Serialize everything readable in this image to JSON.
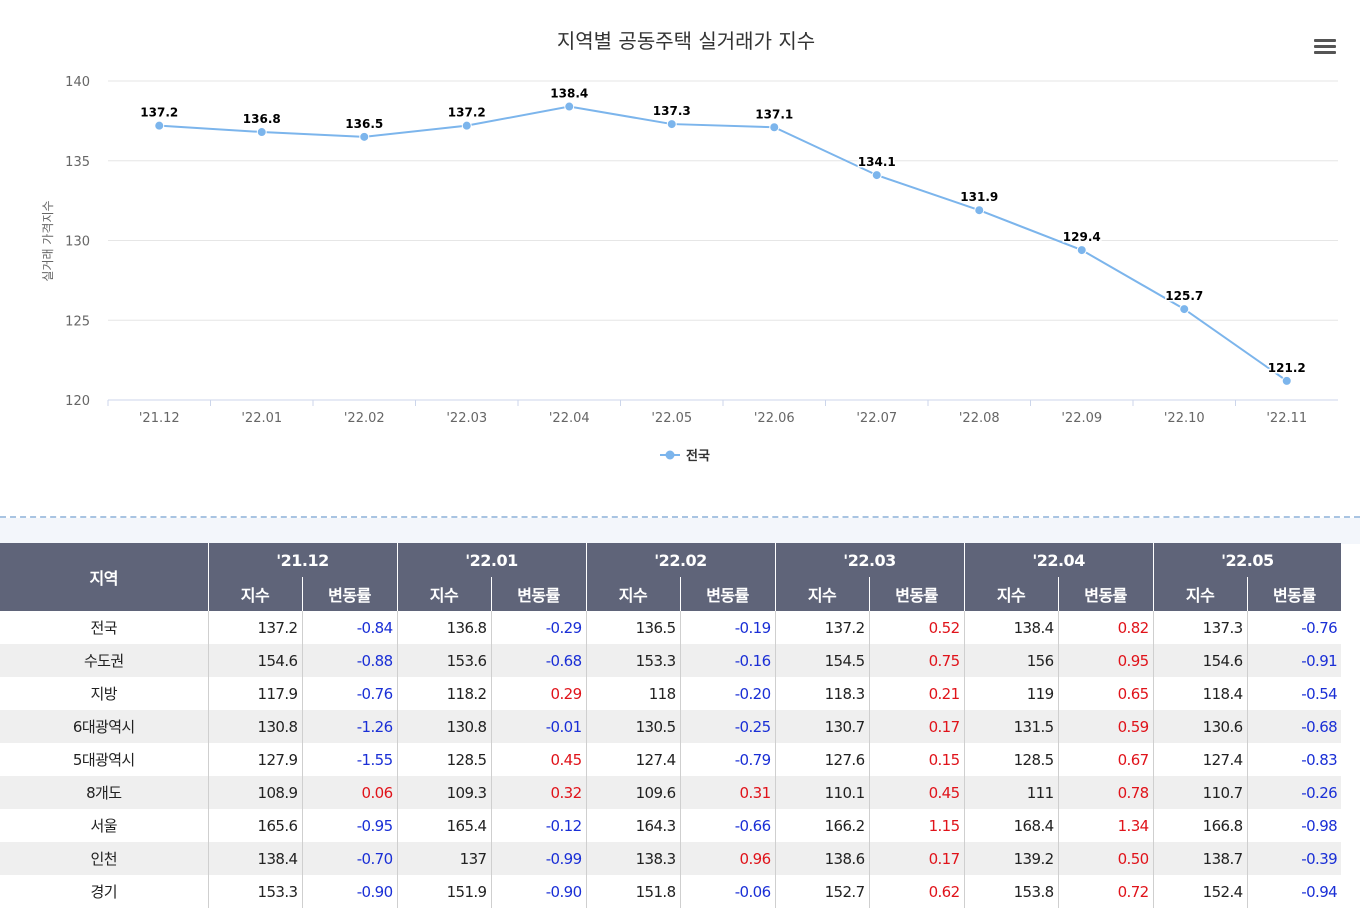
{
  "title": "지역별 공동주택 실거래가 지수",
  "menu_icon": "hamburger-menu-icon",
  "chart_data": {
    "type": "line",
    "title": "지역별 공동주택 실거래가 지수",
    "ylabel": "실거래 가격지수",
    "xlabel": "",
    "ylim": [
      120,
      140
    ],
    "yticks": [
      "140",
      "135",
      "130",
      "125",
      "120"
    ],
    "categories": [
      "'21.12",
      "'22.01",
      "'22.02",
      "'22.03",
      "'22.04",
      "'22.05",
      "'22.06",
      "'22.07",
      "'22.08",
      "'22.09",
      "'22.10",
      "'22.11"
    ],
    "series": [
      {
        "name": "전국",
        "values": [
          137.2,
          136.8,
          136.5,
          137.2,
          138.4,
          137.3,
          137.1,
          134.1,
          131.9,
          129.4,
          125.7,
          121.2
        ],
        "color": "#7cb5ec"
      }
    ],
    "grid": true,
    "legend_position": "bottom-center"
  },
  "table": {
    "region_header": "지역",
    "periods": [
      "'21.12",
      "'22.01",
      "'22.02",
      "'22.03",
      "'22.04",
      "'22.05"
    ],
    "sub_headers": {
      "index": "지수",
      "change": "변동률"
    },
    "rows": [
      {
        "region": "전국",
        "cells": [
          [
            "137.2",
            "-0.84"
          ],
          [
            "136.8",
            "-0.29"
          ],
          [
            "136.5",
            "-0.19"
          ],
          [
            "137.2",
            "0.52"
          ],
          [
            "138.4",
            "0.82"
          ],
          [
            "137.3",
            "-0.76"
          ]
        ]
      },
      {
        "region": "수도권",
        "cells": [
          [
            "154.6",
            "-0.88"
          ],
          [
            "153.6",
            "-0.68"
          ],
          [
            "153.3",
            "-0.16"
          ],
          [
            "154.5",
            "0.75"
          ],
          [
            "156",
            "0.95"
          ],
          [
            "154.6",
            "-0.91"
          ]
        ]
      },
      {
        "region": "지방",
        "cells": [
          [
            "117.9",
            "-0.76"
          ],
          [
            "118.2",
            "0.29"
          ],
          [
            "118",
            "-0.20"
          ],
          [
            "118.3",
            "0.21"
          ],
          [
            "119",
            "0.65"
          ],
          [
            "118.4",
            "-0.54"
          ]
        ]
      },
      {
        "region": "6대광역시",
        "cells": [
          [
            "130.8",
            "-1.26"
          ],
          [
            "130.8",
            "-0.01"
          ],
          [
            "130.5",
            "-0.25"
          ],
          [
            "130.7",
            "0.17"
          ],
          [
            "131.5",
            "0.59"
          ],
          [
            "130.6",
            "-0.68"
          ]
        ]
      },
      {
        "region": "5대광역시",
        "cells": [
          [
            "127.9",
            "-1.55"
          ],
          [
            "128.5",
            "0.45"
          ],
          [
            "127.4",
            "-0.79"
          ],
          [
            "127.6",
            "0.15"
          ],
          [
            "128.5",
            "0.67"
          ],
          [
            "127.4",
            "-0.83"
          ]
        ]
      },
      {
        "region": "8개도",
        "cells": [
          [
            "108.9",
            "0.06"
          ],
          [
            "109.3",
            "0.32"
          ],
          [
            "109.6",
            "0.31"
          ],
          [
            "110.1",
            "0.45"
          ],
          [
            "111",
            "0.78"
          ],
          [
            "110.7",
            "-0.26"
          ]
        ]
      },
      {
        "region": "서울",
        "cells": [
          [
            "165.6",
            "-0.95"
          ],
          [
            "165.4",
            "-0.12"
          ],
          [
            "164.3",
            "-0.66"
          ],
          [
            "166.2",
            "1.15"
          ],
          [
            "168.4",
            "1.34"
          ],
          [
            "166.8",
            "-0.98"
          ]
        ]
      },
      {
        "region": "인천",
        "cells": [
          [
            "138.4",
            "-0.70"
          ],
          [
            "137",
            "-0.99"
          ],
          [
            "138.3",
            "0.96"
          ],
          [
            "138.6",
            "0.17"
          ],
          [
            "139.2",
            "0.50"
          ],
          [
            "138.7",
            "-0.39"
          ]
        ]
      },
      {
        "region": "경기",
        "cells": [
          [
            "153.3",
            "-0.90"
          ],
          [
            "151.9",
            "-0.90"
          ],
          [
            "151.8",
            "-0.06"
          ],
          [
            "152.7",
            "0.62"
          ],
          [
            "153.8",
            "0.72"
          ],
          [
            "152.4",
            "-0.94"
          ]
        ]
      }
    ]
  }
}
